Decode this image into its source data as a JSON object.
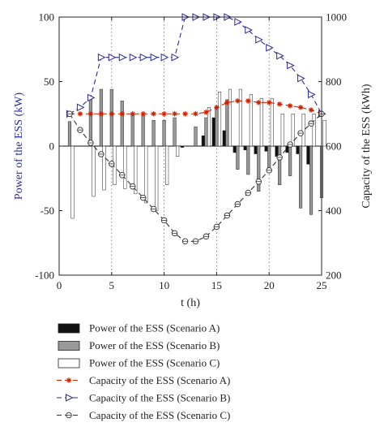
{
  "chart_data": {
    "type": "bar+line",
    "title": "",
    "xlabel": "t (h)",
    "ylabel_left": "Power of the ESS (kW)",
    "ylabel_right": "Capacity of the ESS (kWh)",
    "xlim": [
      0,
      25
    ],
    "xticks": [
      0,
      5,
      10,
      15,
      20,
      25
    ],
    "ylim_left": [
      -100,
      100
    ],
    "yticks_left": [
      -100,
      -50,
      0,
      50,
      100
    ],
    "ylim_right": [
      200,
      1000
    ],
    "yticks_right": [
      200,
      400,
      600,
      800,
      1000
    ],
    "grid": "dotted vertical lines at x = 5, 10, 15, 20",
    "zero_line": true,
    "x": [
      1,
      2,
      3,
      4,
      5,
      6,
      7,
      8,
      9,
      10,
      11,
      12,
      13,
      14,
      15,
      16,
      17,
      18,
      19,
      20,
      21,
      22,
      23,
      24,
      25
    ],
    "bar_series": [
      {
        "name": "Power of the ESS (Scenario A)",
        "color": "#111111",
        "values": [
          0,
          0,
          0,
          0,
          0,
          0,
          0,
          0,
          0,
          0,
          0,
          -1,
          0,
          8,
          22,
          12,
          -5,
          -3,
          -6,
          -4,
          -8,
          -5,
          -6,
          -14,
          0
        ]
      },
      {
        "name": "Power of the ESS (Scenario B)",
        "color": "#999999",
        "values": [
          19,
          0,
          37,
          44,
          44,
          35,
          25,
          24,
          20,
          20,
          22,
          0,
          15,
          22,
          30,
          36,
          -18,
          -22,
          -35,
          -20,
          -30,
          -23,
          -48,
          -53,
          -40
        ]
      },
      {
        "name": "Power of the ESS (Scenario C)",
        "color": "#ffffff",
        "values": [
          -56,
          0,
          -39,
          -34,
          -30,
          -33,
          -37,
          -44,
          -50,
          -30,
          -8,
          0,
          0,
          30,
          42,
          44,
          44,
          40,
          37,
          37,
          25,
          25,
          25,
          25,
          20
        ]
      }
    ],
    "line_series": [
      {
        "name": "Capacity of the ESS (Scenario A)",
        "color": "#cc2200",
        "marker": "asterisk",
        "x": [
          1,
          2,
          3,
          4,
          5,
          6,
          7,
          8,
          9,
          10,
          11,
          12,
          13,
          14,
          15,
          16,
          17,
          18,
          19,
          20,
          21,
          22,
          23,
          24,
          25
        ],
        "values": [
          700,
          700,
          700,
          700,
          700,
          700,
          700,
          700,
          700,
          700,
          700,
          700,
          700,
          705,
          720,
          735,
          740,
          740,
          735,
          735,
          730,
          725,
          720,
          712,
          700
        ]
      },
      {
        "name": "Capacity of the ESS (Scenario B)",
        "color": "#2a2a9a",
        "marker": "triangle-right",
        "x": [
          1,
          2,
          3,
          4,
          5,
          6,
          7,
          8,
          9,
          10,
          11,
          12,
          13,
          14,
          15,
          16,
          17,
          18,
          19,
          20,
          21,
          22,
          23,
          24,
          25
        ],
        "values": [
          700,
          720,
          750,
          875,
          875,
          875,
          875,
          875,
          875,
          875,
          875,
          1000,
          1000,
          1000,
          1000,
          1000,
          985,
          960,
          930,
          905,
          880,
          850,
          810,
          760,
          700
        ]
      },
      {
        "name": "Capacity of the ESS (Scenario C)",
        "color": "#333333",
        "marker": "circle-open",
        "x": [
          1,
          2,
          3,
          4,
          5,
          6,
          7,
          8,
          9,
          10,
          11,
          12,
          13,
          14,
          15,
          16,
          17,
          18,
          19,
          20,
          21,
          22,
          23,
          24,
          25
        ],
        "values": [
          700,
          650,
          610,
          575,
          545,
          510,
          475,
          440,
          405,
          370,
          330,
          305,
          305,
          320,
          350,
          385,
          420,
          455,
          490,
          525,
          565,
          605,
          640,
          670,
          700
        ]
      }
    ],
    "legend": {
      "placement": "below",
      "entries": [
        "Power of the ESS (Scenario A)",
        "Power of the ESS (Scenario B)",
        "Power of the ESS (Scenario C)",
        "Capacity of the ESS (Scenario A)",
        "Capacity of the ESS (Scenario B)",
        "Capacity of the ESS (Scenario C)"
      ]
    }
  }
}
